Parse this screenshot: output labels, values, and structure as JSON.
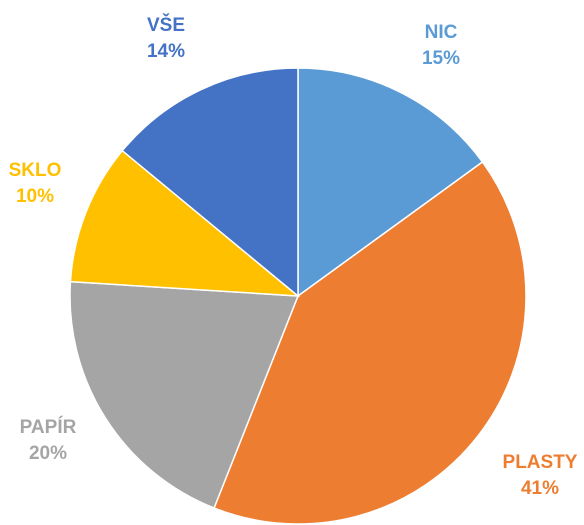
{
  "chart_data": {
    "type": "pie",
    "categories": [
      "NIC",
      "PLASTY",
      "PAPÍR",
      "SKLO",
      "VŠE"
    ],
    "values": [
      15,
      41,
      20,
      10,
      14
    ],
    "value_labels": [
      "15%",
      "41%",
      "20%",
      "10%",
      "14%"
    ],
    "colors": [
      "#5b9bd5",
      "#ed7d31",
      "#a5a5a5",
      "#ffc000",
      "#4472c4"
    ]
  }
}
